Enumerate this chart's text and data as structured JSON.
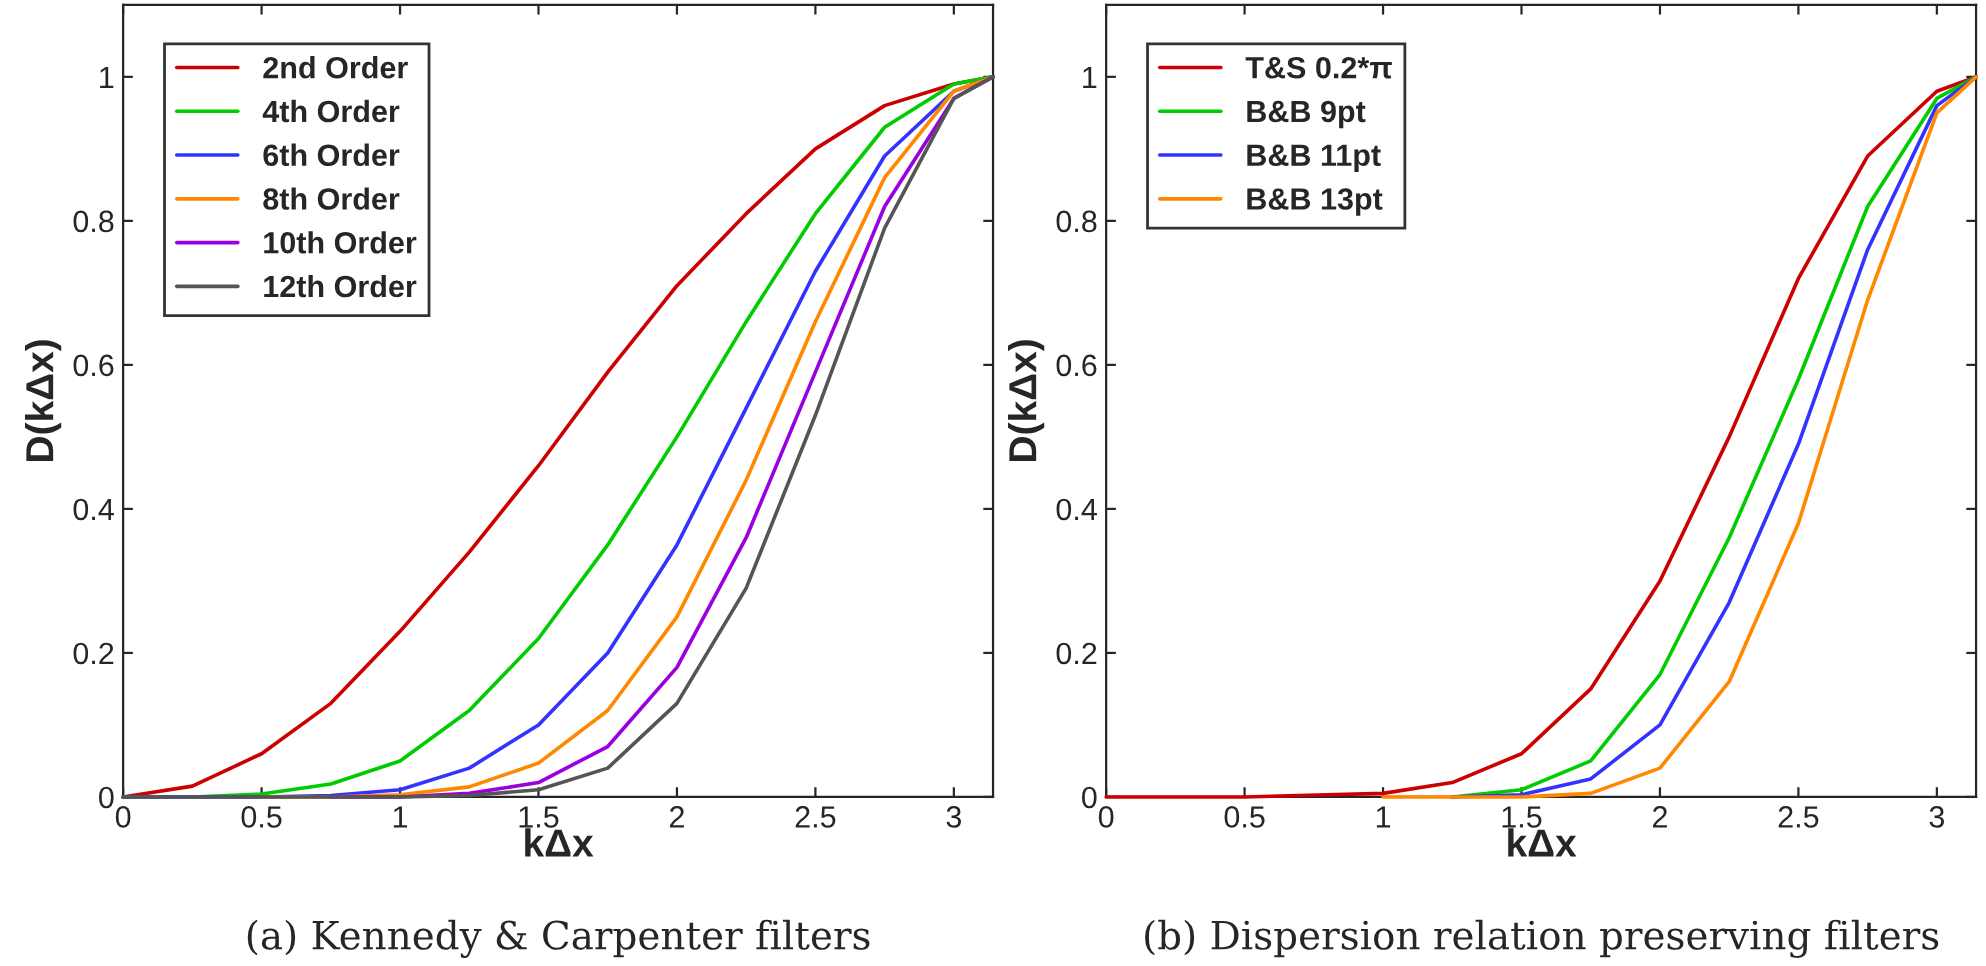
{
  "chart_data": [
    {
      "type": "line",
      "xlabel": "kΔx",
      "ylabel": "D(kΔx)",
      "annotations": [
        "(a) Kennedy & Carpenter filters"
      ],
      "xlim": [
        0,
        3.1416
      ],
      "xticks": [
        0,
        0.5,
        1,
        1.5,
        2,
        2.5,
        3
      ],
      "ylim": [
        0,
        1.1
      ],
      "yticks": [
        0,
        0.2,
        0.4,
        0.6,
        0.8,
        1
      ],
      "legend": "top left",
      "grid": false,
      "x": [
        0,
        0.25,
        0.5,
        0.75,
        1,
        1.25,
        1.5,
        1.75,
        2,
        2.25,
        2.5,
        2.75,
        3,
        3.1416
      ],
      "series": [
        {
          "name": "2nd Order",
          "color": "#cc0000",
          "values": [
            0,
            0.015,
            0.06,
            0.13,
            0.23,
            0.34,
            0.46,
            0.59,
            0.71,
            0.81,
            0.9,
            0.96,
            0.99,
            1
          ]
        },
        {
          "name": "4th Order",
          "color": "#00cc00",
          "values": [
            0,
            0,
            0.004,
            0.018,
            0.05,
            0.12,
            0.22,
            0.35,
            0.5,
            0.66,
            0.81,
            0.93,
            0.99,
            1
          ]
        },
        {
          "name": "6th Order",
          "color": "#3333ff",
          "values": [
            0,
            0,
            0,
            0.002,
            0.01,
            0.04,
            0.1,
            0.2,
            0.35,
            0.54,
            0.73,
            0.89,
            0.98,
            1
          ]
        },
        {
          "name": "8th Order",
          "color": "#ff8800",
          "values": [
            null,
            null,
            0,
            0,
            0.003,
            0.014,
            0.047,
            0.12,
            0.25,
            0.44,
            0.66,
            0.86,
            0.98,
            1
          ]
        },
        {
          "name": "10th Order",
          "color": "#9900dd",
          "values": [
            null,
            null,
            null,
            0,
            0,
            0.005,
            0.02,
            0.07,
            0.18,
            0.36,
            0.59,
            0.82,
            0.97,
            1
          ]
        },
        {
          "name": "12th Order",
          "color": "#555555",
          "values": [
            0,
            0,
            0,
            0,
            0,
            0.002,
            0.01,
            0.04,
            0.13,
            0.29,
            0.53,
            0.79,
            0.97,
            1
          ]
        }
      ]
    },
    {
      "type": "line",
      "xlabel": "kΔx",
      "ylabel": "D(kΔx)",
      "annotations": [
        "(b) Dispersion relation preserving filters"
      ],
      "xlim": [
        0,
        3.1416
      ],
      "xticks": [
        0,
        0.5,
        1,
        1.5,
        2,
        2.5,
        3
      ],
      "ylim": [
        0,
        1.1
      ],
      "yticks": [
        0,
        0.2,
        0.4,
        0.6,
        0.8,
        1
      ],
      "legend": "top left",
      "grid": false,
      "x": [
        0,
        0.5,
        1,
        1.25,
        1.5,
        1.75,
        2,
        2.25,
        2.5,
        2.75,
        3,
        3.1416
      ],
      "series": [
        {
          "name": "T&S 0.2*π",
          "color": "#cc0000",
          "values": [
            0,
            0,
            0.005,
            0.02,
            0.06,
            0.15,
            0.3,
            0.5,
            0.72,
            0.89,
            0.98,
            1
          ]
        },
        {
          "name": "B&B 9pt",
          "color": "#00cc00",
          "values": [
            null,
            null,
            null,
            0,
            0.01,
            0.05,
            0.17,
            0.36,
            0.58,
            0.82,
            0.97,
            1
          ]
        },
        {
          "name": "B&B 11pt",
          "color": "#3333ff",
          "values": [
            null,
            null,
            null,
            0,
            0.003,
            0.025,
            0.1,
            0.27,
            0.49,
            0.76,
            0.96,
            1
          ]
        },
        {
          "name": "B&B 13pt",
          "color": "#ff8800",
          "values": [
            null,
            null,
            0,
            0,
            0,
            0.005,
            0.04,
            0.16,
            0.38,
            0.69,
            0.95,
            1
          ]
        }
      ]
    }
  ]
}
